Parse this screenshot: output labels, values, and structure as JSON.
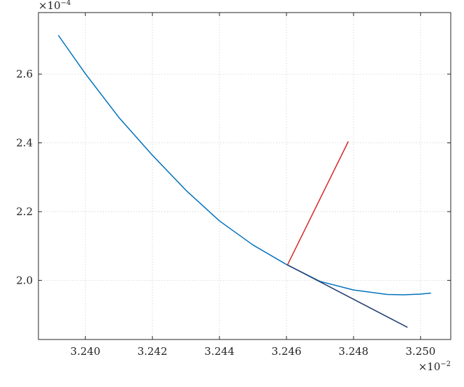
{
  "chart_data": {
    "type": "line",
    "x_multiplier_label": "×10",
    "x_multiplier_exponent": "−2",
    "y_multiplier_label": "×10",
    "y_multiplier_exponent": "−4",
    "xlim": [
      3.2386,
      3.2509
    ],
    "ylim": [
      1.828,
      2.779
    ],
    "grid": true,
    "x_ticks": [
      3.24,
      3.242,
      3.244,
      3.246,
      3.248,
      3.25
    ],
    "x_tick_labels": [
      "3.240",
      "3.242",
      "3.244",
      "3.246",
      "3.248",
      "3.250"
    ],
    "y_ticks": [
      2.0,
      2.2,
      2.4,
      2.6
    ],
    "y_tick_labels": [
      "2.0",
      "2.2",
      "2.4",
      "2.6"
    ],
    "series": [
      {
        "color": "#0072bd",
        "x": [
          3.2392,
          3.24,
          3.241,
          3.242,
          3.243,
          3.244,
          3.245,
          3.246,
          3.247,
          3.248,
          3.249,
          3.2495,
          3.25,
          3.2503
        ],
        "y": [
          2.712,
          2.601,
          2.474,
          2.364,
          2.262,
          2.173,
          2.103,
          2.046,
          1.997,
          1.972,
          1.959,
          1.958,
          1.96,
          1.963
        ]
      },
      {
        "color": "#d62728",
        "x": [
          3.24603,
          3.24784
        ],
        "y": [
          2.045,
          2.403
        ]
      },
      {
        "color": "#1f3c6e",
        "x": [
          3.24603,
          3.2496
        ],
        "y": [
          2.045,
          1.864
        ]
      }
    ]
  }
}
